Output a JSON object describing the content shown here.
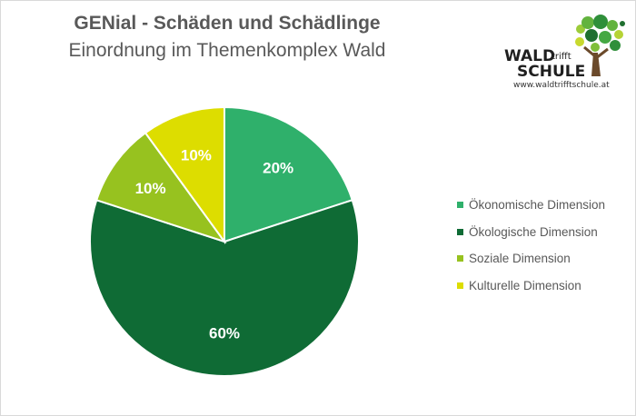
{
  "header": {
    "title": "GENial - Schäden und Schädlinge",
    "subtitle": "Einordnung im Themenkomplex Wald"
  },
  "logo": {
    "word1": "WALD",
    "word2": "trifft",
    "word3": "SCHULE",
    "url": "www.waldtrifftschule.at"
  },
  "chart_data": {
    "type": "pie",
    "categories": [
      "Ökonomische Dimension",
      "Ökologische Dimension",
      "Soziale Dimension",
      "Kulturelle Dimension"
    ],
    "values": [
      20,
      60,
      10,
      10
    ],
    "labels": [
      "20%",
      "60%",
      "10%",
      "10%"
    ],
    "colors": [
      "#2fb06b",
      "#0f6b35",
      "#97c21f",
      "#dddd00"
    ],
    "legend_position": "right"
  }
}
